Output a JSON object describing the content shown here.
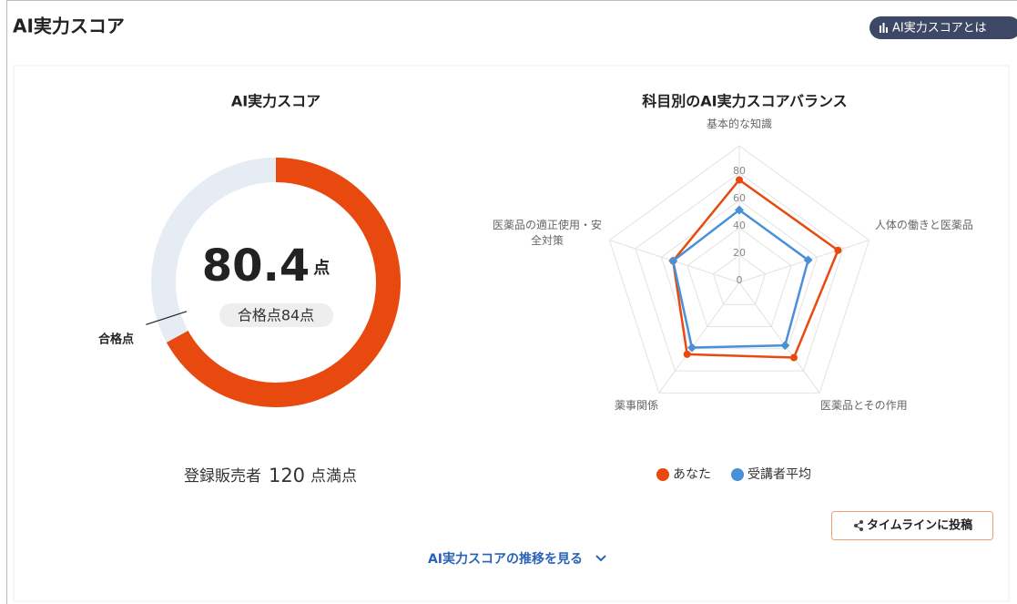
{
  "header": {
    "title": "AI実力スコア",
    "help_button": "AI実力スコアとは"
  },
  "score": {
    "title": "AI実力スコア",
    "value": 80.4,
    "unit": "点",
    "max": 120,
    "pass_value": 84,
    "pass_label": "合格点84点",
    "pass_marker_label": "合格点",
    "max_prefix": "登録販売者",
    "max_suffix": "点満点",
    "color": "#e8490f",
    "track_color": "#e6ecf4"
  },
  "chart_data": {
    "type": "radar",
    "title": "科目別のAI実力スコアバランス",
    "categories": [
      "基本的な知識",
      "人体の働きと医薬品",
      "医薬品とその作用",
      "薬事関係",
      "医薬品の適正使用・安全対策"
    ],
    "series": [
      {
        "name": "あなた",
        "color": "#e8490f",
        "values": [
          75,
          76,
          68,
          65,
          51
        ]
      },
      {
        "name": "受講者平均",
        "color": "#4a90d9",
        "values": [
          53,
          53,
          57,
          59,
          51
        ]
      }
    ],
    "rlim": [
      0,
      100
    ],
    "rticks": [
      0,
      20,
      40,
      60,
      80
    ]
  },
  "actions": {
    "share_button": "タイムラインに投稿",
    "history_link": "AI実力スコアの推移を見る"
  }
}
